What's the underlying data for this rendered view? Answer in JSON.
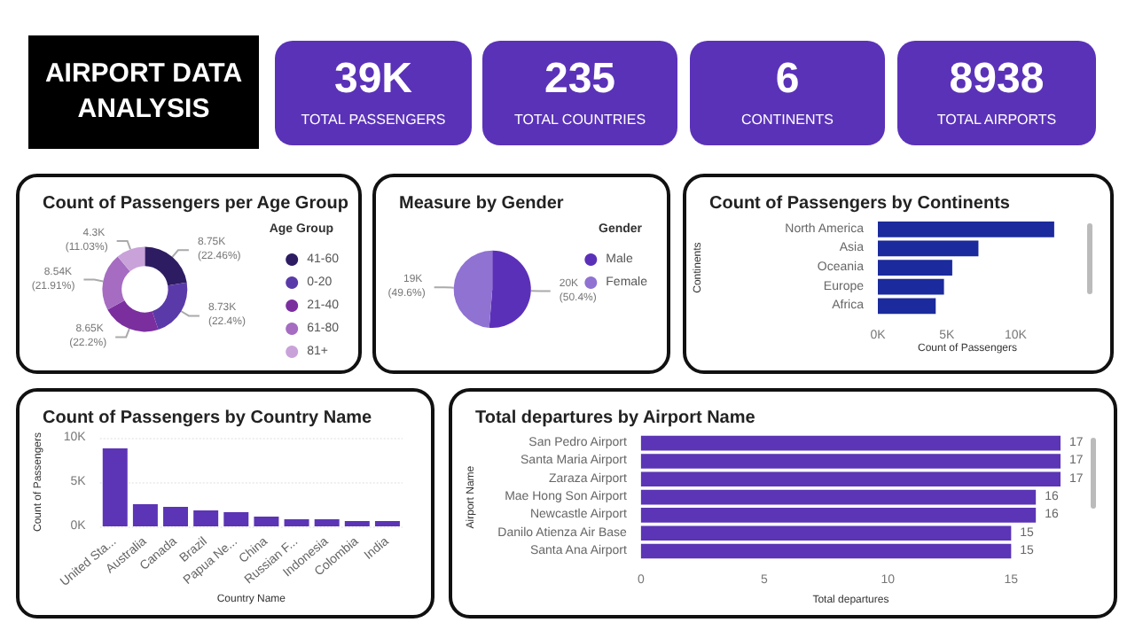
{
  "chart_data": [
    {
      "type": "other",
      "title": "AIRPORT DATA ANALYSIS"
    },
    {
      "type": "other",
      "title": "TOTAL PASSENGERS",
      "annotations": [
        "39K"
      ]
    },
    {
      "type": "other",
      "title": "TOTAL COUNTRIES",
      "annotations": [
        "235"
      ]
    },
    {
      "type": "other",
      "title": "CONTINENTS",
      "annotations": [
        "6"
      ]
    },
    {
      "type": "other",
      "title": "TOTAL AIRPORTS",
      "annotations": [
        "8938"
      ]
    },
    {
      "type": "donut",
      "title": "Count of Passengers per Age Group",
      "legend_title": "Age Group",
      "legend": "right",
      "categories": [
        "41-60",
        "0-20",
        "21-40",
        "61-80",
        "81+"
      ],
      "values": [
        8750,
        8730,
        8650,
        8540,
        4300
      ],
      "value_labels": [
        "8.75K (22.46%)",
        "8.73K (22.4%)",
        "8.65K (22.2%)",
        "8.54K (21.91%)",
        "4.3K (11.03%)"
      ],
      "colors": [
        "#2e1c63",
        "#5a3aa8",
        "#7b2f9f",
        "#a56cc2",
        "#c9a2da"
      ]
    },
    {
      "type": "pie",
      "title": "Measure by Gender",
      "legend_title": "Gender",
      "legend": "right",
      "categories": [
        "Male",
        "Female"
      ],
      "values": [
        20000,
        19000
      ],
      "value_labels": [
        "20K (50.4%)",
        "19K (49.6%)"
      ],
      "colors": [
        "#5b30b8",
        "#8f72d2"
      ]
    },
    {
      "type": "bar",
      "orientation": "horizontal",
      "title": "Count of Passengers by Continents",
      "xlabel": "Count of Passengers",
      "ylabel": "Continents",
      "categories": [
        "North America",
        "Asia",
        "Oceania",
        "Europe",
        "Africa"
      ],
      "values": [
        12800,
        7300,
        5400,
        4800,
        4200
      ],
      "color": "#1b2a9c",
      "xlim": [
        0,
        13000
      ],
      "xticks": [
        {
          "value": 0,
          "label": "0K"
        },
        {
          "value": 5000,
          "label": "5K"
        },
        {
          "value": 10000,
          "label": "10K"
        }
      ]
    },
    {
      "type": "bar",
      "title": "Count of Passengers by Country Name",
      "xlabel": "Country Name",
      "ylabel": "Count of Passengers",
      "grid": "y",
      "categories": [
        "United Sta...",
        "Australia",
        "Canada",
        "Brazil",
        "Papua Ne...",
        "China",
        "Russian F...",
        "Indonesia",
        "Colombia",
        "India"
      ],
      "values": [
        8800,
        2500,
        2200,
        1800,
        1600,
        1100,
        800,
        800,
        600,
        600
      ],
      "color": "#5b35b5",
      "ylim": [
        0,
        10000
      ],
      "yticks": [
        {
          "value": 0,
          "label": "0K"
        },
        {
          "value": 5000,
          "label": "5K"
        },
        {
          "value": 10000,
          "label": "10K"
        }
      ]
    },
    {
      "type": "bar",
      "orientation": "horizontal",
      "title": "Total departures by Airport Name",
      "xlabel": "Total departures",
      "ylabel": "Airport Name",
      "data_labels": true,
      "categories": [
        "San Pedro Airport",
        "Santa Maria Airport",
        "Zaraza Airport",
        "Mae Hong Son Airport",
        "Newcastle Airport",
        "Danilo Atienza Air Base",
        "Santa Ana Airport"
      ],
      "values": [
        17,
        17,
        17,
        16,
        16,
        15,
        15
      ],
      "color": "#5b35b5",
      "xlim": [
        0,
        17
      ],
      "xticks": [
        0,
        5,
        10,
        15
      ]
    }
  ]
}
